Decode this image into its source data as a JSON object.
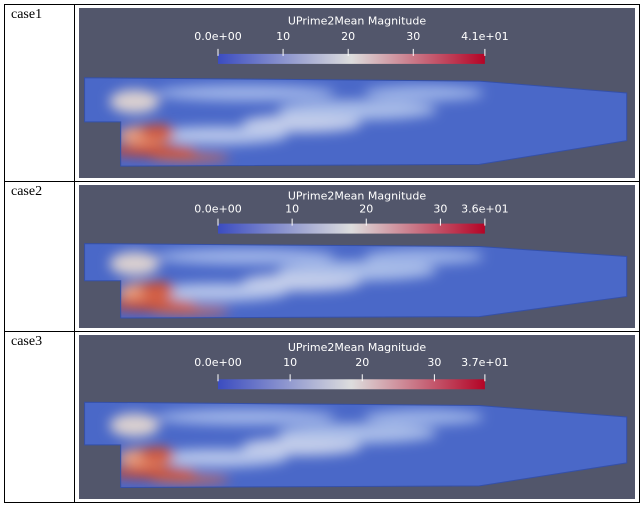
{
  "table": {
    "rows": [
      {
        "label": "case1",
        "colorbar": {
          "title": "UPrime2Mean Magnitude",
          "ticks": [
            {
              "value": 0,
              "label": "0.0e+00"
            },
            10,
            20,
            30,
            {
              "value": 41,
              "label": "4.1e+01"
            }
          ]
        }
      },
      {
        "label": "case2",
        "colorbar": {
          "title": "UPrime2Mean Magnitude",
          "ticks": [
            {
              "value": 0,
              "label": "0.0e+00"
            },
            10,
            20,
            30,
            {
              "value": 36,
              "label": "3.6e+01"
            }
          ]
        }
      },
      {
        "label": "case3",
        "colorbar": {
          "title": "UPrime2Mean Magnitude",
          "ticks": [
            {
              "value": 0,
              "label": "0.0e+00"
            },
            10,
            20,
            30,
            {
              "value": 37,
              "label": "3.7e+01"
            }
          ]
        }
      }
    ]
  }
}
